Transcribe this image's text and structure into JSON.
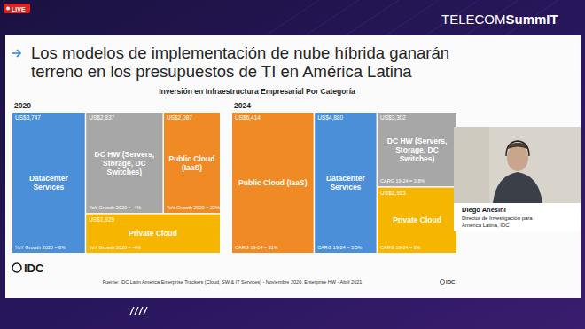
{
  "page": {
    "live": "LIVE",
    "brand": [
      "TELECOM",
      "SummIT"
    ],
    "title": [
      "Los modelos de implementación de nube híbrida ganarán",
      "terreno en los presupuestos de TI en América Latina"
    ],
    "subtitle": "Inversión en Infraestructura Empresarial Por Categoría",
    "source": "Fuente: IDC Latin America Enterprise Trackers (Cloud, SW & IT Services) - Noviembre 2020. Enterprise HW - Abril 2021",
    "logo": "IDC",
    "presenter": {
      "name": "Diego Anesini",
      "role": [
        "Director de Investigación para",
        "América Latina, IDC"
      ]
    }
  },
  "chart_data": [
    {
      "type": "treemap",
      "title": "2020",
      "categories": [
        "Datacenter Services",
        "DC HW (Servers, Storage, DC Switches)",
        "Public Cloud (IaaS)",
        "Private Cloud"
      ],
      "values": [
        3747,
        2837,
        2087,
        1929
      ],
      "value_labels": [
        "US$3,747",
        "US$2,837",
        "US$2,087",
        "US$1,929"
      ],
      "annotations": [
        "YoY Growth 2020 = 8%",
        "YoY Growth 2020 = -4%",
        "YoY Growth 2020 = 22%",
        "YoY Growth 2020 = -4%"
      ],
      "colors": [
        "#4a8fd8",
        "#a7a7a7",
        "#f08a24",
        "#f6b500"
      ],
      "data_labels": true
    },
    {
      "type": "treemap",
      "title": "2024",
      "categories": [
        "Public Cloud (IaaS)",
        "Datacenter Services",
        "DC HW (Servers, Storage, DC Switches)",
        "Private Cloud"
      ],
      "values": [
        6414,
        4880,
        3302,
        2923
      ],
      "value_labels": [
        "US$6,414",
        "US$4,880",
        "US$3,302",
        "US$2,923"
      ],
      "annotations": [
        "CARG 19-24 = 31%",
        "CARG 19-24 = 5.5%",
        "CARG 19-24 = 3.8%",
        "CARG 19-24 = 8%"
      ],
      "colors": [
        "#f08a24",
        "#4a8fd8",
        "#a7a7a7",
        "#f6b500"
      ],
      "data_labels": true
    }
  ]
}
